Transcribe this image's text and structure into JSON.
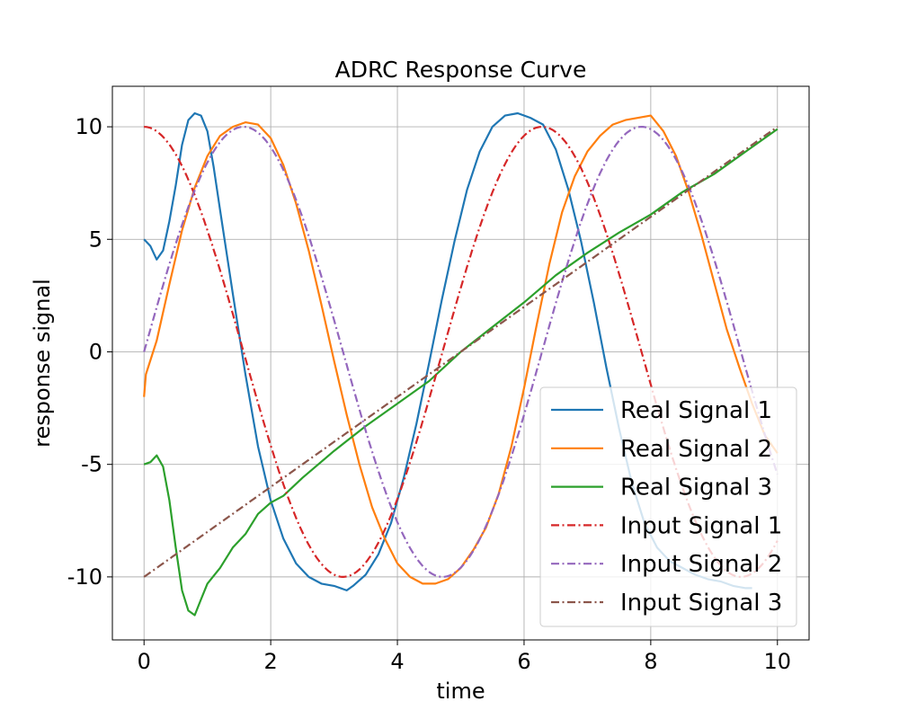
{
  "chart_data": {
    "type": "line",
    "title": "ADRC Response Curve",
    "xlabel": "time",
    "ylabel": "response signal",
    "xlim": [
      -0.5,
      10.5
    ],
    "ylim": [
      -12.8,
      11.8
    ],
    "x_ticks": [
      0,
      2,
      4,
      6,
      8,
      10
    ],
    "x_tick_labels": [
      "0",
      "2",
      "4",
      "6",
      "8",
      "10"
    ],
    "y_ticks": [
      10,
      5,
      0,
      -5,
      -10
    ],
    "y_tick_labels": [
      "10",
      "5",
      "0",
      "-5",
      "-10"
    ],
    "grid": true,
    "legend_position": "lower-right",
    "series": [
      {
        "name": "Real Signal 1",
        "color": "#1f77b4",
        "style": "solid",
        "x": [
          0,
          0.1,
          0.2,
          0.3,
          0.4,
          0.5,
          0.6,
          0.7,
          0.8,
          0.9,
          1.0,
          1.1,
          1.2,
          1.4,
          1.6,
          1.8,
          2.0,
          2.2,
          2.4,
          2.6,
          2.8,
          3.0,
          3.2,
          3.3,
          3.5,
          3.7,
          3.9,
          4.1,
          4.3,
          4.5,
          4.7,
          4.9,
          5.1,
          5.3,
          5.5,
          5.7,
          5.9,
          6.1,
          6.3,
          6.5,
          6.7,
          6.9,
          7.1,
          7.3,
          7.5,
          7.7,
          7.9,
          8.1,
          8.3,
          8.5,
          8.7,
          8.9,
          9.1,
          9.3,
          9.5,
          9.6
        ],
        "values": [
          5.0,
          4.7,
          4.1,
          4.5,
          5.8,
          7.4,
          9.2,
          10.3,
          10.6,
          10.5,
          9.8,
          8.2,
          6.3,
          2.6,
          -1.0,
          -4.2,
          -6.6,
          -8.3,
          -9.4,
          -10.0,
          -10.3,
          -10.4,
          -10.6,
          -10.4,
          -9.9,
          -9.0,
          -7.6,
          -5.6,
          -3.2,
          -0.5,
          2.3,
          4.9,
          7.2,
          8.9,
          10.0,
          10.5,
          10.6,
          10.4,
          10.1,
          9.0,
          7.2,
          4.9,
          2.2,
          -0.7,
          -3.4,
          -5.8,
          -7.6,
          -8.7,
          -9.3,
          -9.6,
          -9.9,
          -10.1,
          -10.2,
          -10.4,
          -10.5,
          -10.5
        ]
      },
      {
        "name": "Real Signal 2",
        "color": "#ff7f0e",
        "style": "solid",
        "x": [
          0,
          0.03,
          0.2,
          0.4,
          0.6,
          0.8,
          1.0,
          1.2,
          1.4,
          1.6,
          1.8,
          2.0,
          2.2,
          2.4,
          2.6,
          2.8,
          3.0,
          3.2,
          3.4,
          3.6,
          3.8,
          4.0,
          4.2,
          4.4,
          4.6,
          4.8,
          5.0,
          5.2,
          5.4,
          5.6,
          5.8,
          6.0,
          6.2,
          6.4,
          6.6,
          6.8,
          7.0,
          7.2,
          7.4,
          7.6,
          7.8,
          8.0,
          8.2,
          8.4,
          8.6,
          8.8,
          9.0,
          9.2,
          9.4,
          9.6,
          9.8,
          10.0
        ],
        "values": [
          -2.0,
          -1.0,
          0.5,
          3.0,
          5.4,
          7.3,
          8.7,
          9.6,
          10.0,
          10.2,
          10.1,
          9.5,
          8.3,
          6.6,
          4.5,
          2.1,
          -0.4,
          -2.8,
          -5.0,
          -6.9,
          -8.3,
          -9.4,
          -10.0,
          -10.3,
          -10.3,
          -10.1,
          -9.6,
          -8.8,
          -7.8,
          -6.3,
          -4.2,
          -1.6,
          1.2,
          3.9,
          6.2,
          7.8,
          8.9,
          9.6,
          10.1,
          10.3,
          10.4,
          10.5,
          9.8,
          8.7,
          7.1,
          5.2,
          3.1,
          1.0,
          -0.7,
          -2.3,
          -3.7,
          -4.5
        ]
      },
      {
        "name": "Real Signal 3",
        "color": "#2ca02c",
        "style": "solid",
        "x": [
          0,
          0.1,
          0.2,
          0.3,
          0.4,
          0.5,
          0.6,
          0.7,
          0.8,
          0.9,
          1.0,
          1.2,
          1.4,
          1.6,
          1.8,
          2.0,
          2.2,
          2.5,
          3.0,
          3.5,
          4.0,
          4.5,
          5.0,
          5.5,
          6.0,
          6.5,
          7.0,
          7.5,
          8.0,
          8.5,
          9.0,
          9.5,
          10.0
        ],
        "values": [
          -5.0,
          -4.9,
          -4.6,
          -5.1,
          -6.6,
          -8.7,
          -10.6,
          -11.5,
          -11.7,
          -11.0,
          -10.3,
          -9.6,
          -8.7,
          -8.1,
          -7.2,
          -6.7,
          -6.4,
          -5.6,
          -4.4,
          -3.3,
          -2.3,
          -1.3,
          0.0,
          1.1,
          2.2,
          3.4,
          4.4,
          5.3,
          6.1,
          7.1,
          7.9,
          8.9,
          9.9
        ]
      },
      {
        "name": "Input Signal 1",
        "color": "#d62728",
        "style": "dashdot",
        "function": "10*cos(t)"
      },
      {
        "name": "Input Signal 2",
        "color": "#9467bd",
        "style": "dashdot",
        "function": "10*sin(t)"
      },
      {
        "name": "Input Signal 3",
        "color": "#8c564b",
        "style": "dashdot",
        "function": "-10+2*t"
      }
    ]
  }
}
